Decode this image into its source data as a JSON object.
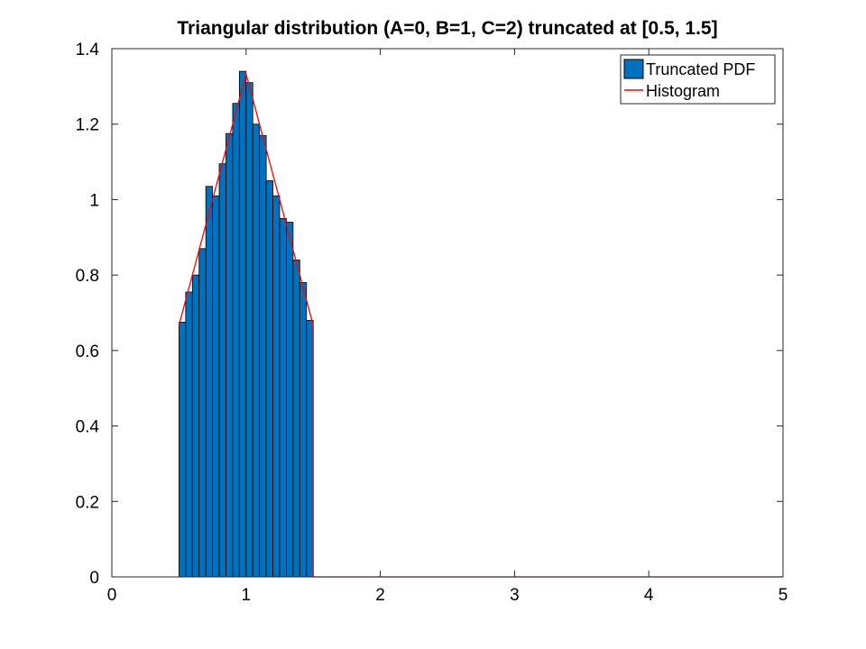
{
  "chart_data": {
    "type": "bar",
    "title": "Triangular distribution (A=0, B=1, C=2) truncated at [0.5, 1.5]",
    "xlabel": "",
    "ylabel": "",
    "xlim": [
      0,
      5
    ],
    "ylim": [
      0,
      1.4
    ],
    "x_ticks": [
      "0",
      "1",
      "2",
      "3",
      "4",
      "5"
    ],
    "y_ticks": [
      "0",
      "0.2",
      "0.4",
      "0.6",
      "0.8",
      "1",
      "1.2",
      "1.4"
    ],
    "grid": false,
    "legend_position": "top-right",
    "bar_width": 0.05,
    "series": [
      {
        "name": "Truncated PDF",
        "kind": "bar",
        "color": "#0072BD",
        "x": [
          0.525,
          0.575,
          0.625,
          0.675,
          0.725,
          0.775,
          0.825,
          0.875,
          0.925,
          0.975,
          1.025,
          1.075,
          1.125,
          1.175,
          1.225,
          1.275,
          1.325,
          1.375,
          1.425,
          1.475
        ],
        "values": [
          0.675,
          0.755,
          0.8,
          0.87,
          1.035,
          1.01,
          1.095,
          1.175,
          1.255,
          1.34,
          1.31,
          1.2,
          1.17,
          1.05,
          1.01,
          0.95,
          0.94,
          0.84,
          0.78,
          0.68
        ]
      },
      {
        "name": "Histogram",
        "kind": "line",
        "color": "#D95319",
        "x": [
          0.5,
          1.0,
          1.5,
          1.5,
          5.0
        ],
        "values": [
          0.667,
          1.333,
          0.667,
          0.0,
          0.0
        ]
      }
    ]
  }
}
